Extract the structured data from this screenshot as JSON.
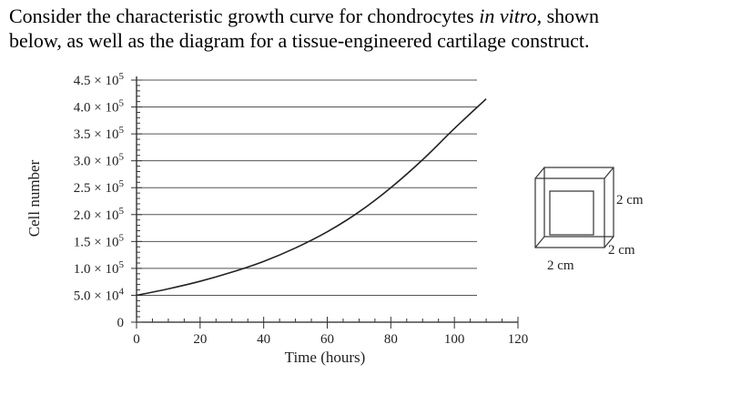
{
  "question": {
    "part1": "Consider the characteristic growth curve for chondrocytes ",
    "part2": "in vitro",
    "part3": ", shown",
    "line2": "below, as well as the diagram for a tissue-engineered cartilage construct."
  },
  "chart_data": {
    "type": "line",
    "xlabel": "Time (hours)",
    "ylabel": "Cell number",
    "xlim": [
      0,
      120
    ],
    "ylim": [
      0,
      450000
    ],
    "x_ticks": [
      0,
      20,
      40,
      60,
      80,
      100,
      120
    ],
    "x_tick_labels": [
      "0",
      "20",
      "40",
      "60",
      "80",
      "100",
      "120"
    ],
    "y_ticks": [
      0,
      50000,
      100000,
      150000,
      200000,
      250000,
      300000,
      350000,
      400000,
      450000
    ],
    "y_tick_labels": [
      {
        "mantissa": "0",
        "exp": ""
      },
      {
        "mantissa": "5.0 × 10",
        "exp": "4"
      },
      {
        "mantissa": "1.0 × 10",
        "exp": "5"
      },
      {
        "mantissa": "1.5 × 10",
        "exp": "5"
      },
      {
        "mantissa": "2.0 × 10",
        "exp": "5"
      },
      {
        "mantissa": "2.5 × 10",
        "exp": "5"
      },
      {
        "mantissa": "3.0 × 10",
        "exp": "5"
      },
      {
        "mantissa": "3.5 × 10",
        "exp": "5"
      },
      {
        "mantissa": "4.0 × 10",
        "exp": "5"
      },
      {
        "mantissa": "4.5 × 10",
        "exp": "5"
      }
    ],
    "grid": "horizontal",
    "series": [
      {
        "x": [
          0,
          10,
          20,
          30,
          40,
          50,
          60,
          70,
          80,
          90,
          100,
          110
        ],
        "y": [
          50000,
          62000,
          76000,
          93000,
          113000,
          138000,
          168000,
          205000,
          250000,
          302000,
          360000,
          415000
        ]
      }
    ]
  },
  "cube": {
    "labels": [
      "2 cm",
      "2 cm",
      "2 cm"
    ]
  }
}
